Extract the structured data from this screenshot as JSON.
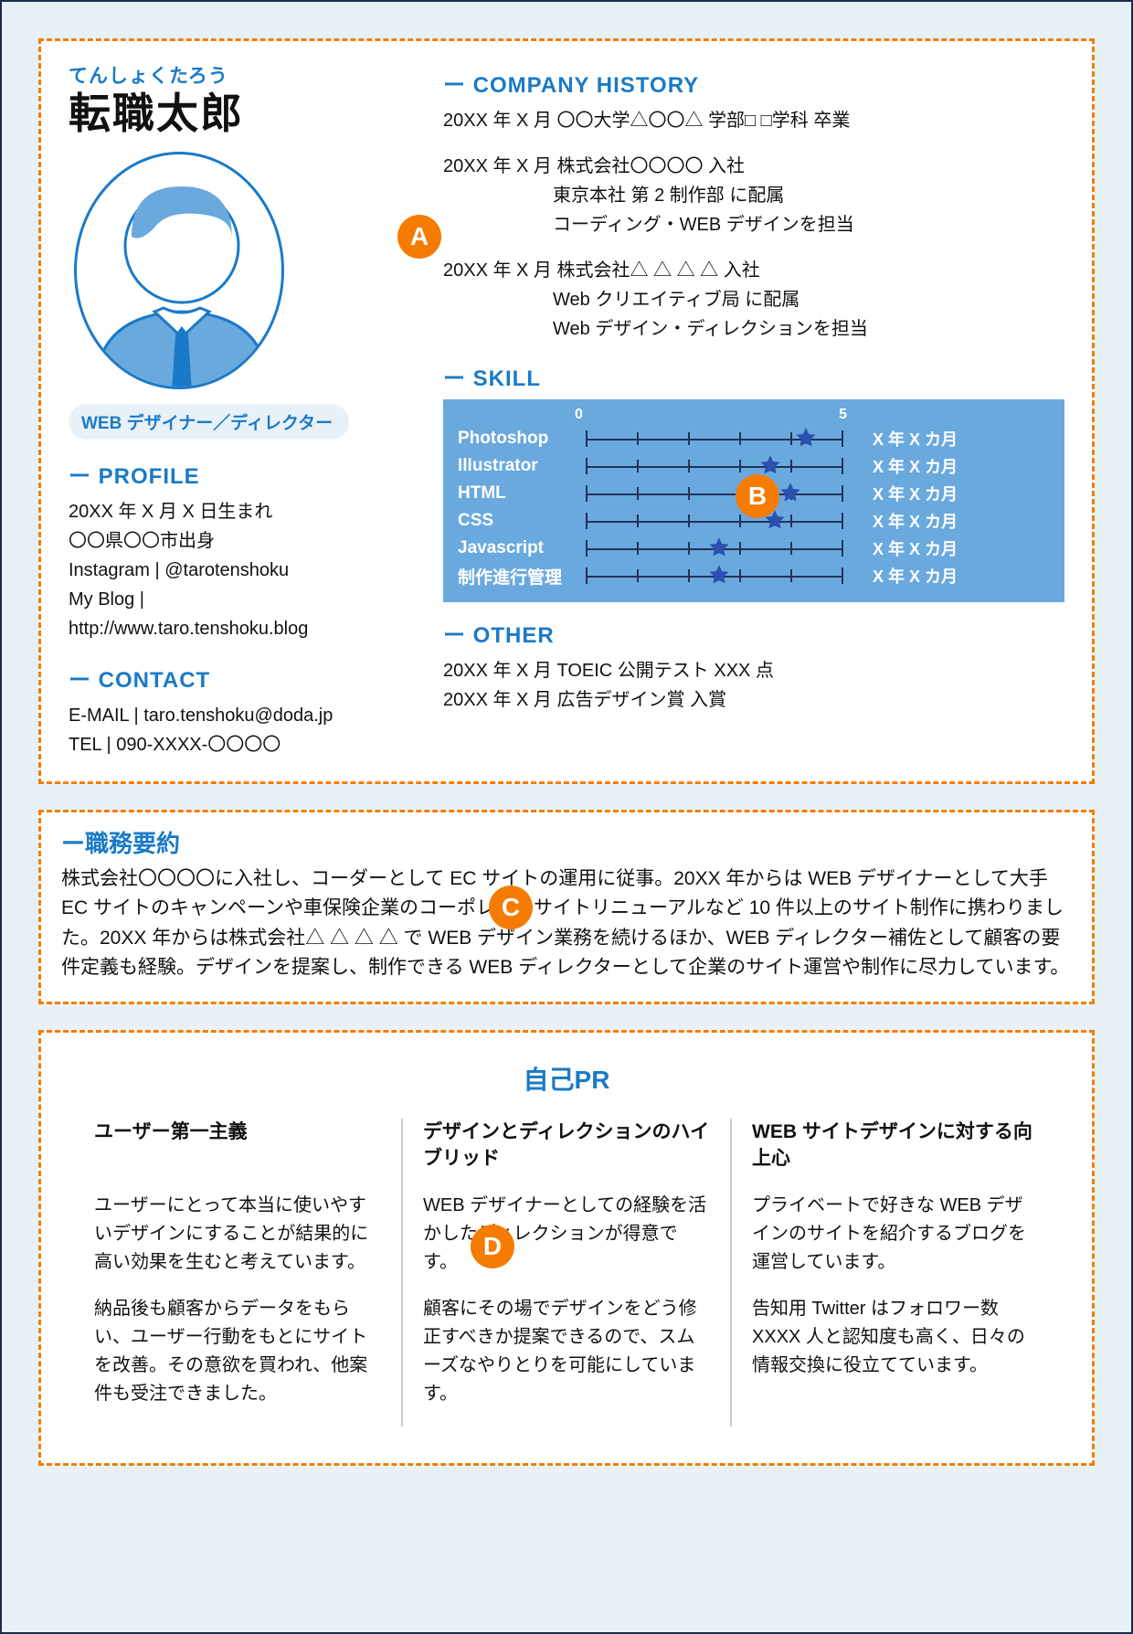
{
  "colors": {
    "page_bg": "#e8f1f8",
    "page_border": "#1a2d4a",
    "dashed_border": "#f57c00",
    "card_bg": "#ffffff",
    "accent_blue": "#1a7ac8",
    "skill_box_bg": "#6aa9de",
    "skill_line": "#21335a",
    "star_fill": "#2c4fb0",
    "callout_bg": "#f57c00",
    "divider": "#c7cdd6",
    "text": "#111111"
  },
  "header": {
    "furigana": "てんしょくたろう",
    "name": "転職太郎",
    "role": "WEB デザイナー／ディレクター",
    "avatar": {
      "hair_color": "#6aa9de",
      "tie_color": "#1a7ac8",
      "collar_color": "#ffffff",
      "suit_color": "#6aa9de",
      "outline": "#1a7ac8"
    }
  },
  "profile": {
    "heading": "PROFILE",
    "lines": [
      "20XX 年 X 月 X 日生まれ",
      "〇〇県〇〇市出身",
      "Instagram | @tarotenshoku",
      "My Blog |",
      "http://www.taro.tenshoku.blog"
    ]
  },
  "contact": {
    "heading": "CONTACT",
    "lines": [
      "E-MAIL | taro.tenshoku@doda.jp",
      "TEL | 090-XXXX-〇〇〇〇"
    ]
  },
  "history": {
    "heading": "COMPANY HISTORY",
    "entries": [
      {
        "line": "20XX 年 X 月 〇〇大学△〇〇△ 学部□ □学科 卒業",
        "subs": []
      },
      {
        "line": "20XX 年 X 月 株式会社〇〇〇〇 入社",
        "subs": [
          "東京本社 第 2 制作部 に配属",
          "コーディング・WEB デザインを担当"
        ]
      },
      {
        "line": "20XX 年 X 月 株式会社△ △ △ △ 入社",
        "subs": [
          "Web クリエイティブ局 に配属",
          "Web デザイン・ディレクションを担当"
        ]
      }
    ]
  },
  "skill": {
    "heading": "SKILL",
    "scale_min_label": "0",
    "scale_max_label": "5",
    "scale_min": 0,
    "scale_max": 5,
    "rows": [
      {
        "name": "Photoshop",
        "value": 4.3,
        "duration": "X 年 X カ月"
      },
      {
        "name": "Illustrator",
        "value": 3.6,
        "duration": "X 年 X カ月"
      },
      {
        "name": "HTML",
        "value": 4.0,
        "duration": "X 年 X カ月"
      },
      {
        "name": "CSS",
        "value": 3.7,
        "duration": "X 年 X カ月"
      },
      {
        "name": "Javascript",
        "value": 2.6,
        "duration": "X 年 X カ月"
      },
      {
        "name": "制作進行管理",
        "value": 2.6,
        "duration": "X 年 X カ月"
      }
    ]
  },
  "other": {
    "heading": "OTHER",
    "lines": [
      "20XX 年 X 月 TOEIC 公開テスト XXX 点",
      "20XX 年 X 月 広告デザイン賞 入賞"
    ]
  },
  "summary": {
    "heading": "ー職務要約",
    "body": "株式会社〇〇〇〇に入社し、コーダーとして EC サイトの運用に従事。20XX 年からは WEB デザイナーとして大手 EC サイトのキャンペーンや車保険企業のコーポレートサイトリニューアルなど 10 件以上のサイト制作に携わりました。20XX 年からは株式会社△ △ △ △ で WEB デザイン業務を続けるほか、WEB ディレクター補佐として顧客の要件定義も経験。デザインを提案し、制作できる WEB ディレクターとして企業のサイト運営や制作に尽力しています。"
  },
  "pr": {
    "title": "自己PR",
    "columns": [
      {
        "subtitle": "ユーザー第一主義",
        "paras": [
          "ユーザーにとって本当に使いやすいデザインにすることが結果的に高い効果を生むと考えています。",
          "納品後も顧客からデータをもらい、ユーザー行動をもとにサイトを改善。その意欲を買われ、他案件も受注できました。"
        ]
      },
      {
        "subtitle": "デザインとディレクションのハイブリッド",
        "paras": [
          "WEB デザイナーとしての経験を活かしたディレクションが得意です。",
          "顧客にその場でデザインをどう修正すべきか提案できるので、スムーズなやりとりを可能にしています。"
        ]
      },
      {
        "subtitle": "WEB サイトデザインに対する向上心",
        "paras": [
          "プライベートで好きな WEB デザインのサイトを紹介するブログを運営しています。",
          "告知用 Twitter はフォロワー数 XXXX 人と認知度も高く、日々の情報交換に役立てています。"
        ]
      }
    ]
  },
  "callouts": {
    "A": "A",
    "B": "B",
    "C": "C",
    "D": "D"
  }
}
